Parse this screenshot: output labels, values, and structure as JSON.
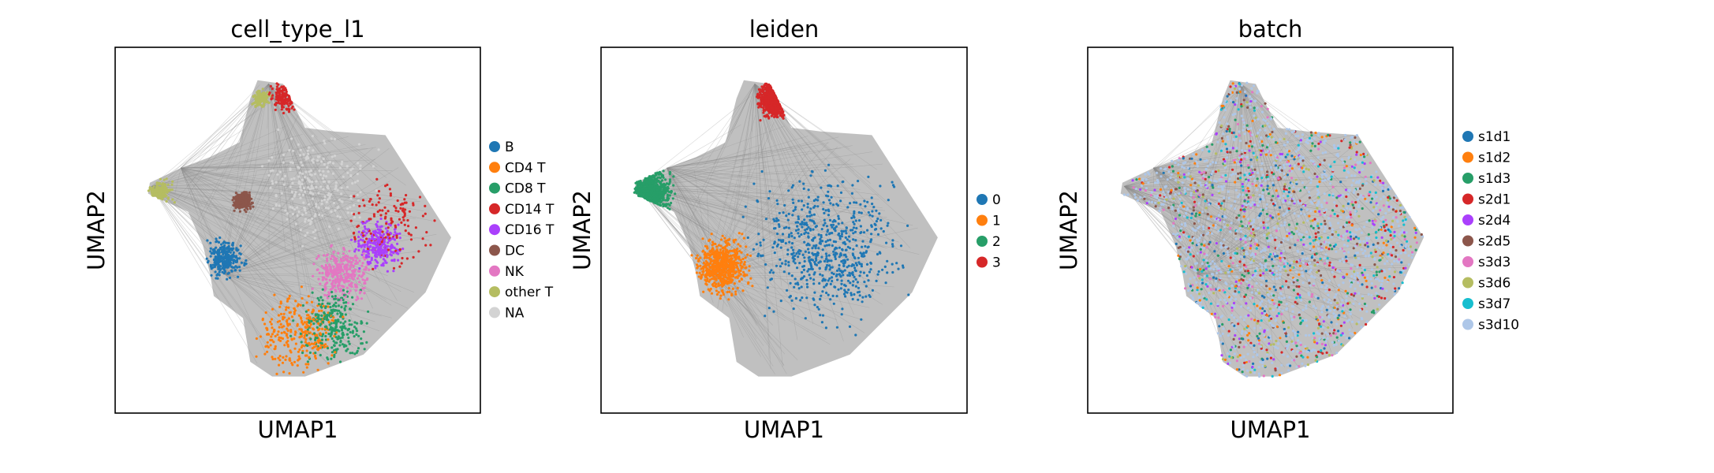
{
  "chart_data": [
    {
      "type": "scatter",
      "title": "cell_type_l1",
      "xlabel": "UMAP1",
      "ylabel": "UMAP2",
      "ticks": "none",
      "grid": false,
      "edges": "gray neighbor-graph lines behind points",
      "legend_position": "right",
      "legend": [
        {
          "label": "B",
          "color": "#1f77b4"
        },
        {
          "label": "CD4 T",
          "color": "#ff7f0e"
        },
        {
          "label": "CD8 T",
          "color": "#279e68"
        },
        {
          "label": "CD14 T",
          "color": "#d62728"
        },
        {
          "label": "CD16 T",
          "color": "#aa40fc"
        },
        {
          "label": "DC",
          "color": "#8c564b"
        },
        {
          "label": "NK",
          "color": "#e377c2"
        },
        {
          "label": "other T",
          "color": "#b5bd61"
        },
        {
          "label": "NA",
          "color": "#d3d3d3"
        }
      ]
    },
    {
      "type": "scatter",
      "title": "leiden",
      "xlabel": "UMAP1",
      "ylabel": "UMAP2",
      "ticks": "none",
      "grid": false,
      "edges": "gray neighbor-graph lines behind points",
      "legend_position": "right",
      "legend": [
        {
          "label": "0",
          "color": "#1f77b4"
        },
        {
          "label": "1",
          "color": "#ff7f0e"
        },
        {
          "label": "2",
          "color": "#279e68"
        },
        {
          "label": "3",
          "color": "#d62728"
        }
      ]
    },
    {
      "type": "scatter",
      "title": "batch",
      "xlabel": "UMAP1",
      "ylabel": "UMAP2",
      "ticks": "none",
      "grid": false,
      "edges": "gray neighbor-graph lines behind points",
      "legend_position": "right",
      "legend": [
        {
          "label": "s1d1",
          "color": "#1f77b4"
        },
        {
          "label": "s1d2",
          "color": "#ff7f0e"
        },
        {
          "label": "s1d3",
          "color": "#279e68"
        },
        {
          "label": "s2d1",
          "color": "#d62728"
        },
        {
          "label": "s2d4",
          "color": "#aa40fc"
        },
        {
          "label": "s2d5",
          "color": "#8c564b"
        },
        {
          "label": "s3d3",
          "color": "#e377c2"
        },
        {
          "label": "s3d6",
          "color": "#b5bd61"
        },
        {
          "label": "s3d7",
          "color": "#17becf"
        },
        {
          "label": "s3d10",
          "color": "#aec7e8"
        }
      ]
    }
  ]
}
